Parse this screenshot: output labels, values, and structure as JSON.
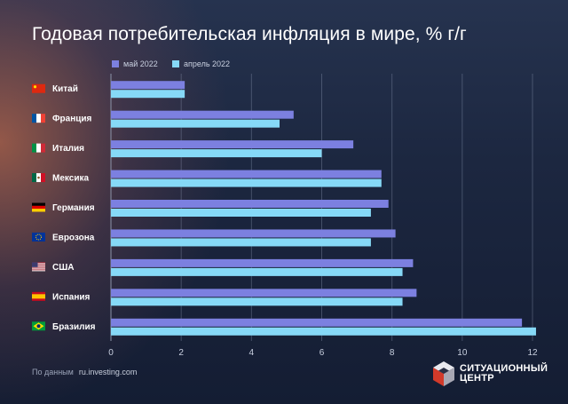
{
  "title": "Годовая потребительская инфляция в мире, % г/г",
  "legend": [
    {
      "label": "май 2022",
      "color": "#7c80e0"
    },
    {
      "label": "апрель 2022",
      "color": "#86d9f7"
    }
  ],
  "source": {
    "prefix": "По данным",
    "link": "ru.investing.com"
  },
  "logo": {
    "line1": "СИТУАЦИОННЫЙ",
    "line2": "ЦЕНТР"
  },
  "chart_data": {
    "type": "bar",
    "orientation": "horizontal",
    "title": "Годовая потребительская инфляция в мире, % г/г",
    "categories": [
      "Китай",
      "Франция",
      "Италия",
      "Мексика",
      "Германия",
      "Еврозона",
      "США",
      "Испания",
      "Бразилия"
    ],
    "flags": [
      "flag-china",
      "flag-france",
      "flag-italy",
      "flag-mexico",
      "flag-germany",
      "flag-eurozone",
      "flag-usa",
      "flag-spain",
      "flag-brazil"
    ],
    "series": [
      {
        "name": "май 2022",
        "color": "#7c80e0",
        "values": [
          2.1,
          5.2,
          6.9,
          7.7,
          7.9,
          8.1,
          8.6,
          8.7,
          11.7
        ]
      },
      {
        "name": "апрель 2022",
        "color": "#86d9f7",
        "values": [
          2.1,
          4.8,
          6.0,
          7.7,
          7.4,
          7.4,
          8.3,
          8.3,
          12.1
        ]
      }
    ],
    "xlim": [
      0,
      12
    ],
    "xticks": [
      0,
      2,
      4,
      6,
      8,
      10,
      12
    ],
    "grid": true,
    "legend_position": "top-left"
  }
}
